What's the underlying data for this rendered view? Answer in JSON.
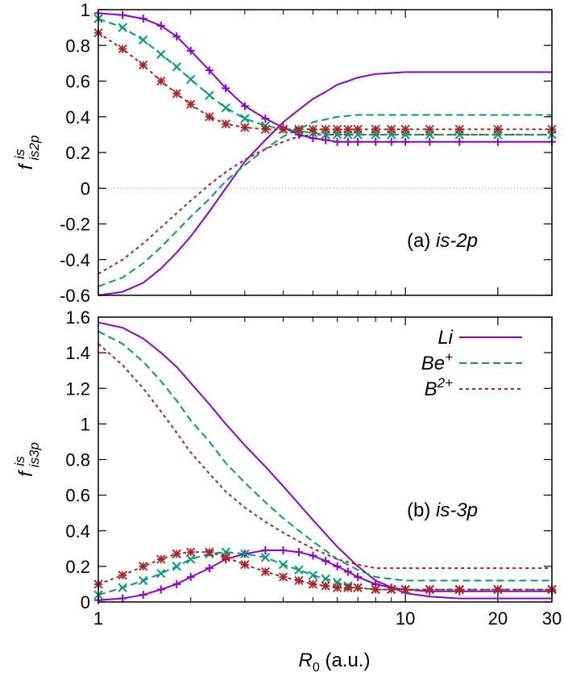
{
  "figure": {
    "xlabel_main": "R",
    "xlabel_sub": "0",
    "xlabel_unit": " (a.u.)"
  },
  "colors": {
    "Li": "#9400d3",
    "Be": "#009e73",
    "B": "#b22222",
    "zero_line": "#999999"
  },
  "chart_data": [
    {
      "type": "line",
      "panel_label": "(a)",
      "panel_label_text": "is-2p",
      "ylabel": {
        "main": "f",
        "sup": "is",
        "sub": "is2p"
      },
      "x_scale": "log",
      "xlim": [
        1,
        30
      ],
      "ylim": [
        -0.6,
        1.0
      ],
      "x_ticks": [
        1,
        10,
        20,
        30
      ],
      "x_tick_labels": [
        "1",
        "10",
        "20",
        "30"
      ],
      "y_ticks": [
        -0.6,
        -0.4,
        -0.2,
        0,
        0.2,
        0.4,
        0.6,
        0.8,
        1.0
      ],
      "y_tick_labels": [
        "-0.6",
        "-0.4",
        "-0.2",
        "0",
        "0.2",
        "0.4",
        "0.6",
        "0.8",
        "1"
      ],
      "zero_line": true,
      "series": [
        {
          "key": "Li",
          "style": "solid",
          "x": [
            1,
            1.2,
            1.4,
            1.6,
            1.8,
            2,
            2.3,
            2.6,
            3,
            3.5,
            4,
            4.5,
            5,
            5.5,
            6,
            6.5,
            7,
            8,
            9,
            10,
            12,
            15,
            20,
            30
          ],
          "y": [
            -0.6,
            -0.58,
            -0.53,
            -0.45,
            -0.36,
            -0.27,
            -0.13,
            0.0,
            0.15,
            0.27,
            0.37,
            0.44,
            0.5,
            0.54,
            0.58,
            0.6,
            0.62,
            0.64,
            0.645,
            0.65,
            0.65,
            0.65,
            0.65,
            0.65
          ]
        },
        {
          "key": "Be",
          "style": "dashed",
          "x": [
            1,
            1.2,
            1.4,
            1.6,
            1.8,
            2,
            2.3,
            2.6,
            3,
            3.5,
            4,
            4.5,
            5,
            6,
            7,
            8,
            10,
            15,
            20,
            30
          ],
          "y": [
            -0.55,
            -0.5,
            -0.42,
            -0.33,
            -0.24,
            -0.16,
            -0.06,
            0.04,
            0.13,
            0.22,
            0.29,
            0.33,
            0.37,
            0.4,
            0.41,
            0.41,
            0.41,
            0.41,
            0.41,
            0.41
          ]
        },
        {
          "key": "B",
          "style": "dotted",
          "x": [
            1,
            1.2,
            1.4,
            1.6,
            1.8,
            2,
            2.3,
            2.6,
            3,
            3.5,
            4,
            4.5,
            5,
            6,
            7,
            8,
            10,
            15,
            20,
            30
          ],
          "y": [
            -0.48,
            -0.4,
            -0.31,
            -0.22,
            -0.14,
            -0.07,
            0.02,
            0.09,
            0.16,
            0.22,
            0.26,
            0.29,
            0.3,
            0.3,
            0.3,
            0.3,
            0.3,
            0.3,
            0.3,
            0.3
          ]
        },
        {
          "key": "Li",
          "style": "solid",
          "marker": "plus",
          "x": [
            1,
            1.2,
            1.4,
            1.6,
            1.8,
            2,
            2.3,
            2.6,
            3,
            3.5,
            4,
            4.5,
            5,
            5.5,
            6,
            6.5,
            7,
            8,
            9,
            10,
            12,
            15,
            20,
            30
          ],
          "y": [
            0.98,
            0.97,
            0.95,
            0.91,
            0.85,
            0.77,
            0.66,
            0.56,
            0.46,
            0.39,
            0.34,
            0.3,
            0.28,
            0.27,
            0.26,
            0.26,
            0.26,
            0.26,
            0.26,
            0.26,
            0.26,
            0.26,
            0.26,
            0.26
          ]
        },
        {
          "key": "Be",
          "style": "dashed",
          "marker": "x",
          "x": [
            1,
            1.2,
            1.4,
            1.6,
            1.8,
            2,
            2.3,
            2.6,
            3,
            3.5,
            4,
            4.5,
            5,
            5.5,
            6,
            6.5,
            7,
            8,
            9,
            10,
            12,
            15,
            20,
            30
          ],
          "y": [
            0.95,
            0.9,
            0.83,
            0.75,
            0.68,
            0.61,
            0.52,
            0.45,
            0.39,
            0.35,
            0.33,
            0.32,
            0.31,
            0.3,
            0.3,
            0.3,
            0.3,
            0.3,
            0.3,
            0.3,
            0.3,
            0.3,
            0.3,
            0.3
          ]
        },
        {
          "key": "B",
          "style": "dotted",
          "marker": "star",
          "x": [
            1,
            1.2,
            1.4,
            1.6,
            1.8,
            2,
            2.3,
            2.6,
            3,
            3.5,
            4,
            4.5,
            5,
            5.5,
            6,
            6.5,
            7,
            8,
            9,
            10,
            12,
            15,
            20,
            30
          ],
          "y": [
            0.87,
            0.78,
            0.69,
            0.6,
            0.53,
            0.47,
            0.4,
            0.36,
            0.34,
            0.33,
            0.33,
            0.33,
            0.33,
            0.33,
            0.33,
            0.33,
            0.33,
            0.33,
            0.33,
            0.33,
            0.33,
            0.33,
            0.33,
            0.33
          ]
        }
      ]
    },
    {
      "type": "line",
      "panel_label": "(b)",
      "panel_label_text": "is-3p",
      "ylabel": {
        "main": "f",
        "sup": "is",
        "sub": "is3p"
      },
      "x_scale": "log",
      "xlim": [
        1,
        30
      ],
      "ylim": [
        0,
        1.6
      ],
      "x_ticks": [
        1,
        10,
        20,
        30
      ],
      "x_tick_labels": [
        "1",
        "10",
        "20",
        "30"
      ],
      "y_ticks": [
        0,
        0.2,
        0.4,
        0.6,
        0.8,
        1.0,
        1.2,
        1.4,
        1.6
      ],
      "y_tick_labels": [
        "0",
        "0.2",
        "0.4",
        "0.6",
        "0.8",
        "1",
        "1.2",
        "1.4",
        "1.6"
      ],
      "legend_position": "top-right",
      "legend": [
        {
          "key": "Li",
          "label": "Li",
          "sup": "",
          "style": "solid"
        },
        {
          "key": "Be",
          "label": "Be",
          "sup": "+",
          "style": "dashed"
        },
        {
          "key": "B",
          "label": "B",
          "sup": "2+",
          "style": "dotted"
        }
      ],
      "series": [
        {
          "key": "Li",
          "style": "solid",
          "x": [
            1,
            1.2,
            1.4,
            1.6,
            1.8,
            2,
            2.3,
            2.6,
            3,
            3.5,
            4,
            4.5,
            5,
            6,
            7,
            8,
            10,
            12,
            15,
            20,
            30
          ],
          "y": [
            1.57,
            1.54,
            1.48,
            1.4,
            1.32,
            1.23,
            1.11,
            1.0,
            0.88,
            0.76,
            0.65,
            0.55,
            0.46,
            0.31,
            0.2,
            0.12,
            0.05,
            0.03,
            0.02,
            0.02,
            0.02
          ]
        },
        {
          "key": "Be",
          "style": "dashed",
          "x": [
            1,
            1.2,
            1.4,
            1.6,
            1.8,
            2,
            2.3,
            2.6,
            3,
            3.5,
            4,
            4.5,
            5,
            6,
            7,
            8,
            10,
            12,
            15,
            20,
            30
          ],
          "y": [
            1.52,
            1.45,
            1.35,
            1.24,
            1.13,
            1.02,
            0.9,
            0.78,
            0.67,
            0.56,
            0.47,
            0.4,
            0.34,
            0.24,
            0.18,
            0.14,
            0.12,
            0.12,
            0.12,
            0.12,
            0.12
          ]
        },
        {
          "key": "B",
          "style": "dotted",
          "x": [
            1,
            1.2,
            1.4,
            1.6,
            1.8,
            2,
            2.3,
            2.6,
            3,
            3.5,
            4,
            4.5,
            5,
            6,
            7,
            8,
            10,
            15,
            20,
            30
          ],
          "y": [
            1.45,
            1.33,
            1.2,
            1.07,
            0.95,
            0.84,
            0.72,
            0.62,
            0.53,
            0.45,
            0.39,
            0.34,
            0.3,
            0.24,
            0.21,
            0.19,
            0.19,
            0.19,
            0.19,
            0.19
          ]
        },
        {
          "key": "Li",
          "style": "solid",
          "marker": "plus",
          "x": [
            1,
            1.2,
            1.4,
            1.6,
            1.8,
            2,
            2.3,
            2.6,
            3,
            3.5,
            4,
            4.5,
            5,
            5.5,
            6,
            6.5,
            7,
            8,
            9,
            10,
            12,
            15,
            20,
            30
          ],
          "y": [
            0.01,
            0.02,
            0.04,
            0.07,
            0.1,
            0.14,
            0.19,
            0.24,
            0.27,
            0.29,
            0.29,
            0.28,
            0.26,
            0.23,
            0.2,
            0.17,
            0.14,
            0.1,
            0.08,
            0.07,
            0.06,
            0.06,
            0.06,
            0.06
          ]
        },
        {
          "key": "Be",
          "style": "dashed",
          "marker": "x",
          "x": [
            1,
            1.2,
            1.4,
            1.6,
            1.8,
            2,
            2.3,
            2.6,
            3,
            3.5,
            4,
            4.5,
            5,
            5.5,
            6,
            6.5,
            7,
            8,
            9,
            10,
            12,
            15,
            20,
            30
          ],
          "y": [
            0.04,
            0.08,
            0.12,
            0.16,
            0.2,
            0.24,
            0.27,
            0.28,
            0.27,
            0.25,
            0.21,
            0.18,
            0.15,
            0.13,
            0.11,
            0.09,
            0.08,
            0.07,
            0.07,
            0.07,
            0.07,
            0.07,
            0.07,
            0.07
          ]
        },
        {
          "key": "B",
          "style": "dotted",
          "marker": "star",
          "x": [
            1,
            1.2,
            1.4,
            1.6,
            1.8,
            2,
            2.3,
            2.6,
            3,
            3.5,
            4,
            4.5,
            5,
            5.5,
            6,
            6.5,
            7,
            8,
            9,
            10,
            12,
            15,
            20,
            30
          ],
          "y": [
            0.1,
            0.15,
            0.2,
            0.24,
            0.27,
            0.28,
            0.28,
            0.25,
            0.21,
            0.17,
            0.14,
            0.12,
            0.1,
            0.09,
            0.08,
            0.08,
            0.08,
            0.07,
            0.07,
            0.07,
            0.07,
            0.07,
            0.07,
            0.07
          ]
        }
      ]
    }
  ]
}
